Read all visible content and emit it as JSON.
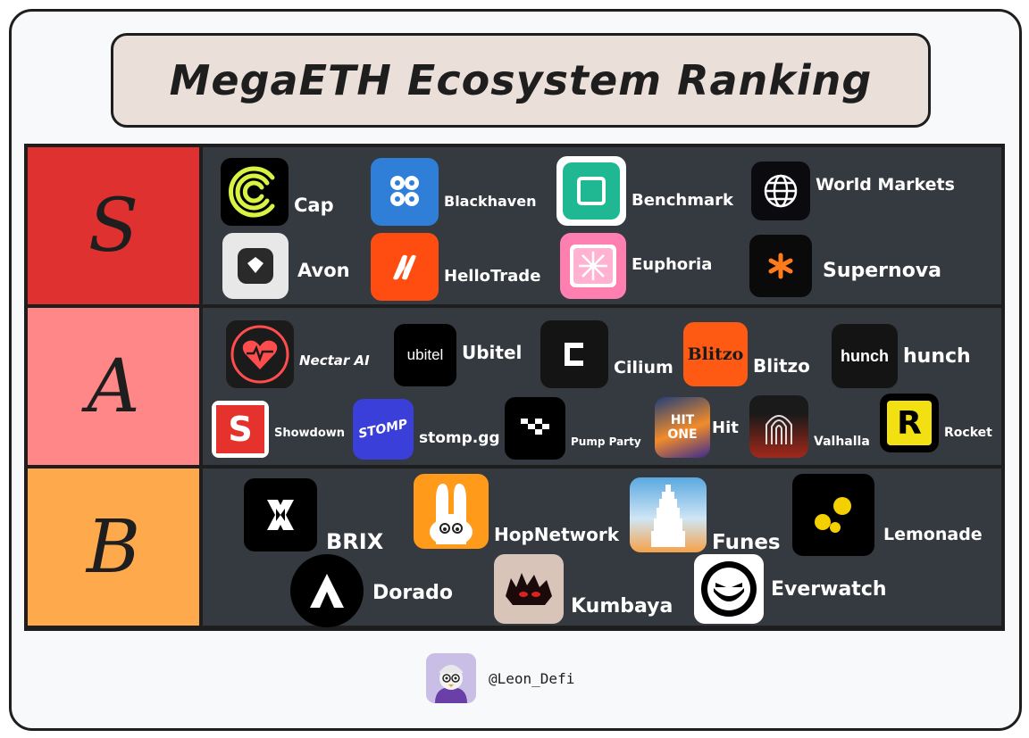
{
  "title": "MegaETH Ecosystem Ranking",
  "tiers": [
    {
      "label": "S",
      "color": "#e03131"
    },
    {
      "label": "A",
      "color": "#ff8787"
    },
    {
      "label": "B",
      "color": "#ffa94d"
    }
  ],
  "projects": {
    "s": [
      "Cap",
      "Blackhaven",
      "Benchmark",
      "World Markets",
      "Avon",
      "HelloTrade",
      "Euphoria",
      "Supernova"
    ],
    "a": [
      "Nectar AI",
      "Ubitel",
      "Cilium",
      "Blitzo",
      "hunch",
      "Showdown",
      "stomp.gg",
      "Pump Party",
      "Hit",
      "Valhalla",
      "Rocket"
    ],
    "b": [
      "BRIX",
      "HopNetwork",
      "Funes",
      "Lemonade",
      "Dorado",
      "Kumbaya",
      "Everwatch"
    ]
  },
  "logo_text": {
    "ubitel": "ubitel",
    "blitzo": "Blitzo",
    "hunch": "hunch",
    "showdown": "S",
    "stomp": "STOMP",
    "hit": "HIT ONE",
    "rocket": "R"
  },
  "icons": {
    "cap": "cap-logo-icon",
    "blackhaven": "blackhaven-logo-icon",
    "benchmark": "benchmark-logo-icon",
    "world_markets": "globe-icon",
    "avon": "avon-logo-icon",
    "hellotrade": "hellotrade-logo-icon",
    "euphoria": "euphoria-logo-icon",
    "supernova": "asterisk-icon"
  },
  "author": "@Leon_Defi"
}
